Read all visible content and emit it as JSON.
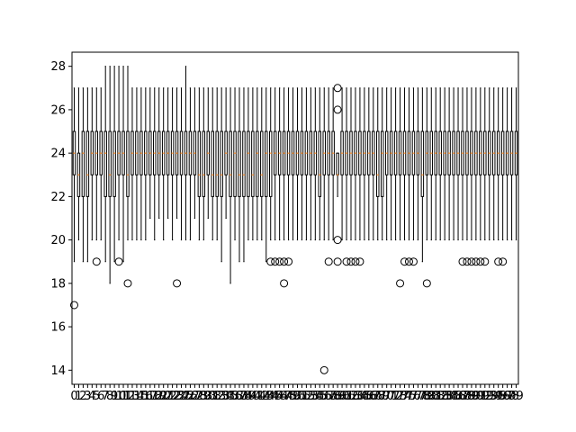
{
  "chart_data": {
    "type": "boxplot",
    "title": "",
    "xlabel": "",
    "ylabel": "",
    "ylim": [
      13.35,
      28.65
    ],
    "xlim": [
      -0.5,
      99.5
    ],
    "y_ticks": [
      14,
      16,
      18,
      20,
      22,
      24,
      26,
      28
    ],
    "x_tick_labels_visible": [
      "0",
      "1",
      "2",
      "3",
      "4",
      "5",
      "6",
      "7",
      "8",
      "9",
      "1",
      "1",
      "1",
      "1",
      "1",
      "1",
      "1",
      "2",
      "2",
      "2",
      "2",
      "2",
      "2",
      "2",
      "3",
      "3",
      "3",
      "3",
      "3",
      "3",
      "4",
      "4",
      "4",
      "4",
      "4",
      "4",
      "4",
      "5",
      "5",
      "5",
      "5",
      "5",
      "5",
      "6",
      "6",
      "6",
      "6",
      "6",
      "6",
      "7",
      "7",
      "7",
      "7",
      "7",
      "7",
      "8",
      "8",
      "8",
      "8",
      "8",
      "9",
      "9",
      "9",
      "9",
      "9",
      "9"
    ],
    "categories": [
      "0",
      "1",
      "2",
      "3",
      "4",
      "5",
      "6",
      "7",
      "8",
      "9",
      "10",
      "11",
      "12",
      "13",
      "14",
      "15",
      "16",
      "17",
      "18",
      "19",
      "20",
      "21",
      "22",
      "23",
      "24",
      "25",
      "26",
      "27",
      "28",
      "29",
      "30",
      "31",
      "32",
      "33",
      "34",
      "35",
      "36",
      "37",
      "38",
      "39",
      "40",
      "41",
      "42",
      "43",
      "44",
      "45",
      "46",
      "47",
      "48",
      "49",
      "50",
      "51",
      "52",
      "53",
      "54",
      "55",
      "56",
      "57",
      "58",
      "59",
      "60",
      "61",
      "62",
      "63",
      "64",
      "65",
      "66",
      "67",
      "68",
      "69",
      "70",
      "71",
      "72",
      "73",
      "74",
      "75",
      "76",
      "77",
      "78",
      "79",
      "80",
      "81",
      "82",
      "83",
      "84",
      "85",
      "86",
      "87",
      "88",
      "89",
      "90",
      "91",
      "92",
      "93",
      "94",
      "95",
      "96",
      "97",
      "98",
      "99"
    ],
    "boxes": [
      {
        "whislo": 19,
        "q1": 23,
        "med": 24,
        "q3": 25,
        "whishi": 27,
        "fliers": [
          17
        ]
      },
      {
        "whislo": 20,
        "q1": 22,
        "med": 23,
        "q3": 24,
        "whishi": 27,
        "fliers": []
      },
      {
        "whislo": 19,
        "q1": 22,
        "med": 24,
        "q3": 25,
        "whishi": 27,
        "fliers": []
      },
      {
        "whislo": 19,
        "q1": 22,
        "med": 23,
        "q3": 25,
        "whishi": 27,
        "fliers": []
      },
      {
        "whislo": 20,
        "q1": 23,
        "med": 24,
        "q3": 25,
        "whishi": 27,
        "fliers": []
      },
      {
        "whislo": 20,
        "q1": 23,
        "med": 24,
        "q3": 25,
        "whishi": 27,
        "fliers": [
          19
        ]
      },
      {
        "whislo": 20,
        "q1": 23,
        "med": 24,
        "q3": 25,
        "whishi": 27,
        "fliers": []
      },
      {
        "whislo": 19,
        "q1": 22,
        "med": 24,
        "q3": 25,
        "whishi": 28,
        "fliers": []
      },
      {
        "whislo": 18,
        "q1": 22,
        "med": 23,
        "q3": 25,
        "whishi": 28,
        "fliers": []
      },
      {
        "whislo": 19,
        "q1": 22,
        "med": 24,
        "q3": 25,
        "whishi": 28,
        "fliers": []
      },
      {
        "whislo": 20,
        "q1": 23,
        "med": 24,
        "q3": 25,
        "whishi": 28,
        "fliers": [
          19
        ]
      },
      {
        "whislo": 19,
        "q1": 23,
        "med": 24,
        "q3": 25,
        "whishi": 28,
        "fliers": []
      },
      {
        "whislo": 20,
        "q1": 22,
        "med": 23,
        "q3": 25,
        "whishi": 28,
        "fliers": [
          18
        ]
      },
      {
        "whislo": 20,
        "q1": 23,
        "med": 24,
        "q3": 25,
        "whishi": 27,
        "fliers": []
      },
      {
        "whislo": 20,
        "q1": 23,
        "med": 24,
        "q3": 25,
        "whishi": 27,
        "fliers": []
      },
      {
        "whislo": 20,
        "q1": 23,
        "med": 24,
        "q3": 25,
        "whishi": 27,
        "fliers": []
      },
      {
        "whislo": 20,
        "q1": 23,
        "med": 24,
        "q3": 25,
        "whishi": 27,
        "fliers": []
      },
      {
        "whislo": 21,
        "q1": 23,
        "med": 24,
        "q3": 25,
        "whishi": 27,
        "fliers": []
      },
      {
        "whislo": 20,
        "q1": 23,
        "med": 24,
        "q3": 25,
        "whishi": 27,
        "fliers": []
      },
      {
        "whislo": 21,
        "q1": 23,
        "med": 24,
        "q3": 25,
        "whishi": 27,
        "fliers": []
      },
      {
        "whislo": 20,
        "q1": 23,
        "med": 24,
        "q3": 25,
        "whishi": 27,
        "fliers": []
      },
      {
        "whislo": 21,
        "q1": 23,
        "med": 24,
        "q3": 25,
        "whishi": 27,
        "fliers": []
      },
      {
        "whislo": 20,
        "q1": 23,
        "med": 24,
        "q3": 25,
        "whishi": 27,
        "fliers": []
      },
      {
        "whislo": 21,
        "q1": 23,
        "med": 24,
        "q3": 25,
        "whishi": 27,
        "fliers": [
          18
        ]
      },
      {
        "whislo": 20,
        "q1": 23,
        "med": 24,
        "q3": 25,
        "whishi": 27,
        "fliers": []
      },
      {
        "whislo": 20,
        "q1": 23,
        "med": 24,
        "q3": 25,
        "whishi": 28,
        "fliers": []
      },
      {
        "whislo": 20,
        "q1": 23,
        "med": 24,
        "q3": 25,
        "whishi": 27,
        "fliers": []
      },
      {
        "whislo": 21,
        "q1": 23,
        "med": 24,
        "q3": 25,
        "whishi": 27,
        "fliers": []
      },
      {
        "whislo": 20,
        "q1": 22,
        "med": 23,
        "q3": 25,
        "whishi": 27,
        "fliers": []
      },
      {
        "whislo": 20,
        "q1": 22,
        "med": 23,
        "q3": 25,
        "whishi": 27,
        "fliers": []
      },
      {
        "whislo": 21,
        "q1": 23,
        "med": 24,
        "q3": 25,
        "whishi": 27,
        "fliers": []
      },
      {
        "whislo": 20,
        "q1": 22,
        "med": 23,
        "q3": 25,
        "whishi": 27,
        "fliers": []
      },
      {
        "whislo": 20,
        "q1": 22,
        "med": 23,
        "q3": 25,
        "whishi": 27,
        "fliers": []
      },
      {
        "whislo": 19,
        "q1": 22,
        "med": 23,
        "q3": 25,
        "whishi": 27,
        "fliers": []
      },
      {
        "whislo": 21,
        "q1": 23,
        "med": 24,
        "q3": 25,
        "whishi": 27,
        "fliers": []
      },
      {
        "whislo": 18,
        "q1": 22,
        "med": 23,
        "q3": 25,
        "whishi": 27,
        "fliers": []
      },
      {
        "whislo": 20,
        "q1": 22,
        "med": 24,
        "q3": 25,
        "whishi": 27,
        "fliers": []
      },
      {
        "whislo": 19,
        "q1": 22,
        "med": 23,
        "q3": 25,
        "whishi": 27,
        "fliers": []
      },
      {
        "whislo": 19,
        "q1": 22,
        "med": 23,
        "q3": 25,
        "whishi": 27,
        "fliers": []
      },
      {
        "whislo": 20,
        "q1": 22,
        "med": 24,
        "q3": 25,
        "whishi": 27,
        "fliers": []
      },
      {
        "whislo": 20,
        "q1": 22,
        "med": 23,
        "q3": 25,
        "whishi": 27,
        "fliers": []
      },
      {
        "whislo": 20,
        "q1": 22,
        "med": 24,
        "q3": 25,
        "whishi": 27,
        "fliers": []
      },
      {
        "whislo": 20,
        "q1": 22,
        "med": 23,
        "q3": 25,
        "whishi": 27,
        "fliers": []
      },
      {
        "whislo": 19,
        "q1": 22,
        "med": 24,
        "q3": 25,
        "whishi": 27,
        "fliers": []
      },
      {
        "whislo": 20,
        "q1": 22,
        "med": 24,
        "q3": 25,
        "whishi": 27,
        "fliers": [
          19
        ]
      },
      {
        "whislo": 20,
        "q1": 23,
        "med": 24,
        "q3": 25,
        "whishi": 27,
        "fliers": [
          19
        ]
      },
      {
        "whislo": 20,
        "q1": 23,
        "med": 24,
        "q3": 25,
        "whishi": 27,
        "fliers": [
          19
        ]
      },
      {
        "whislo": 20,
        "q1": 23,
        "med": 24,
        "q3": 25,
        "whishi": 27,
        "fliers": [
          19,
          18
        ]
      },
      {
        "whislo": 20,
        "q1": 23,
        "med": 24,
        "q3": 25,
        "whishi": 27,
        "fliers": [
          19
        ]
      },
      {
        "whislo": 20,
        "q1": 23,
        "med": 24,
        "q3": 25,
        "whishi": 27,
        "fliers": []
      },
      {
        "whislo": 20,
        "q1": 23,
        "med": 24,
        "q3": 25,
        "whishi": 27,
        "fliers": []
      },
      {
        "whislo": 20,
        "q1": 23,
        "med": 24,
        "q3": 25,
        "whishi": 27,
        "fliers": []
      },
      {
        "whislo": 20,
        "q1": 23,
        "med": 24,
        "q3": 25,
        "whishi": 27,
        "fliers": []
      },
      {
        "whislo": 20,
        "q1": 23,
        "med": 24,
        "q3": 25,
        "whishi": 27,
        "fliers": []
      },
      {
        "whislo": 20,
        "q1": 23,
        "med": 24,
        "q3": 25,
        "whishi": 27,
        "fliers": []
      },
      {
        "whislo": 20,
        "q1": 22,
        "med": 23,
        "q3": 25,
        "whishi": 27,
        "fliers": []
      },
      {
        "whislo": 20,
        "q1": 23,
        "med": 24,
        "q3": 25,
        "whishi": 27,
        "fliers": [
          14
        ]
      },
      {
        "whislo": 20,
        "q1": 23,
        "med": 24,
        "q3": 25,
        "whishi": 27,
        "fliers": [
          19
        ]
      },
      {
        "whislo": 20,
        "q1": 23,
        "med": 24,
        "q3": 25,
        "whishi": 27,
        "fliers": []
      },
      {
        "whislo": 22,
        "q1": 23,
        "med": 23,
        "q3": 24,
        "whishi": 24,
        "fliers": [
          27,
          26,
          20,
          19
        ]
      },
      {
        "whislo": 20,
        "q1": 23,
        "med": 24,
        "q3": 25,
        "whishi": 27,
        "fliers": []
      },
      {
        "whislo": 20,
        "q1": 23,
        "med": 24,
        "q3": 25,
        "whishi": 27,
        "fliers": [
          19
        ]
      },
      {
        "whislo": 20,
        "q1": 23,
        "med": 24,
        "q3": 25,
        "whishi": 27,
        "fliers": [
          19
        ]
      },
      {
        "whislo": 20,
        "q1": 23,
        "med": 24,
        "q3": 25,
        "whishi": 27,
        "fliers": [
          19
        ]
      },
      {
        "whislo": 20,
        "q1": 23,
        "med": 24,
        "q3": 25,
        "whishi": 27,
        "fliers": [
          19
        ]
      },
      {
        "whislo": 20,
        "q1": 23,
        "med": 24,
        "q3": 25,
        "whishi": 27,
        "fliers": []
      },
      {
        "whislo": 20,
        "q1": 23,
        "med": 24,
        "q3": 25,
        "whishi": 27,
        "fliers": []
      },
      {
        "whislo": 20,
        "q1": 23,
        "med": 24,
        "q3": 25,
        "whishi": 27,
        "fliers": []
      },
      {
        "whislo": 20,
        "q1": 22,
        "med": 23,
        "q3": 25,
        "whishi": 27,
        "fliers": []
      },
      {
        "whislo": 20,
        "q1": 22,
        "med": 24,
        "q3": 25,
        "whishi": 27,
        "fliers": []
      },
      {
        "whislo": 20,
        "q1": 23,
        "med": 24,
        "q3": 25,
        "whishi": 27,
        "fliers": []
      },
      {
        "whislo": 20,
        "q1": 23,
        "med": 24,
        "q3": 25,
        "whishi": 27,
        "fliers": []
      },
      {
        "whislo": 20,
        "q1": 23,
        "med": 24,
        "q3": 25,
        "whishi": 27,
        "fliers": []
      },
      {
        "whislo": 20,
        "q1": 23,
        "med": 24,
        "q3": 25,
        "whishi": 27,
        "fliers": [
          18
        ]
      },
      {
        "whislo": 20,
        "q1": 23,
        "med": 24,
        "q3": 25,
        "whishi": 27,
        "fliers": [
          19
        ]
      },
      {
        "whislo": 20,
        "q1": 23,
        "med": 24,
        "q3": 25,
        "whishi": 27,
        "fliers": [
          19
        ]
      },
      {
        "whislo": 20,
        "q1": 23,
        "med": 24,
        "q3": 25,
        "whishi": 27,
        "fliers": [
          19
        ]
      },
      {
        "whislo": 20,
        "q1": 23,
        "med": 24,
        "q3": 25,
        "whishi": 27,
        "fliers": []
      },
      {
        "whislo": 19,
        "q1": 22,
        "med": 23,
        "q3": 25,
        "whishi": 27,
        "fliers": []
      },
      {
        "whislo": 20,
        "q1": 23,
        "med": 24,
        "q3": 25,
        "whishi": 27,
        "fliers": [
          18
        ]
      },
      {
        "whislo": 20,
        "q1": 23,
        "med": 24,
        "q3": 25,
        "whishi": 27,
        "fliers": []
      },
      {
        "whislo": 20,
        "q1": 23,
        "med": 24,
        "q3": 25,
        "whishi": 27,
        "fliers": []
      },
      {
        "whislo": 20,
        "q1": 23,
        "med": 24,
        "q3": 25,
        "whishi": 27,
        "fliers": []
      },
      {
        "whislo": 20,
        "q1": 23,
        "med": 24,
        "q3": 25,
        "whishi": 27,
        "fliers": []
      },
      {
        "whislo": 20,
        "q1": 23,
        "med": 24,
        "q3": 25,
        "whishi": 27,
        "fliers": []
      },
      {
        "whislo": 20,
        "q1": 23,
        "med": 24,
        "q3": 25,
        "whishi": 27,
        "fliers": []
      },
      {
        "whislo": 20,
        "q1": 23,
        "med": 24,
        "q3": 25,
        "whishi": 27,
        "fliers": []
      },
      {
        "whislo": 20,
        "q1": 23,
        "med": 24,
        "q3": 25,
        "whishi": 27,
        "fliers": [
          19
        ]
      },
      {
        "whislo": 20,
        "q1": 23,
        "med": 24,
        "q3": 25,
        "whishi": 27,
        "fliers": [
          19
        ]
      },
      {
        "whislo": 20,
        "q1": 23,
        "med": 24,
        "q3": 25,
        "whishi": 27,
        "fliers": [
          19
        ]
      },
      {
        "whislo": 20,
        "q1": 23,
        "med": 24,
        "q3": 25,
        "whishi": 27,
        "fliers": [
          19
        ]
      },
      {
        "whislo": 20,
        "q1": 23,
        "med": 24,
        "q3": 25,
        "whishi": 27,
        "fliers": [
          19
        ]
      },
      {
        "whislo": 20,
        "q1": 23,
        "med": 24,
        "q3": 25,
        "whishi": 27,
        "fliers": [
          19
        ]
      },
      {
        "whislo": 20,
        "q1": 23,
        "med": 24,
        "q3": 25,
        "whishi": 27,
        "fliers": []
      },
      {
        "whislo": 20,
        "q1": 23,
        "med": 24,
        "q3": 25,
        "whishi": 27,
        "fliers": []
      },
      {
        "whislo": 20,
        "q1": 23,
        "med": 24,
        "q3": 25,
        "whishi": 27,
        "fliers": [
          19
        ]
      },
      {
        "whislo": 20,
        "q1": 23,
        "med": 24,
        "q3": 25,
        "whishi": 27,
        "fliers": [
          19
        ]
      },
      {
        "whislo": 20,
        "q1": 23,
        "med": 24,
        "q3": 25,
        "whishi": 27,
        "fliers": []
      },
      {
        "whislo": 20,
        "q1": 23,
        "med": 24,
        "q3": 25,
        "whishi": 27,
        "fliers": []
      },
      {
        "whislo": 20,
        "q1": 23,
        "med": 24,
        "q3": 25,
        "whishi": 27,
        "fliers": []
      }
    ],
    "colors": {
      "box_edge": "#000000",
      "median": "#ff7f0e",
      "flier_edge": "#000000",
      "background": "#ffffff",
      "axes_edge": "#000000"
    }
  }
}
